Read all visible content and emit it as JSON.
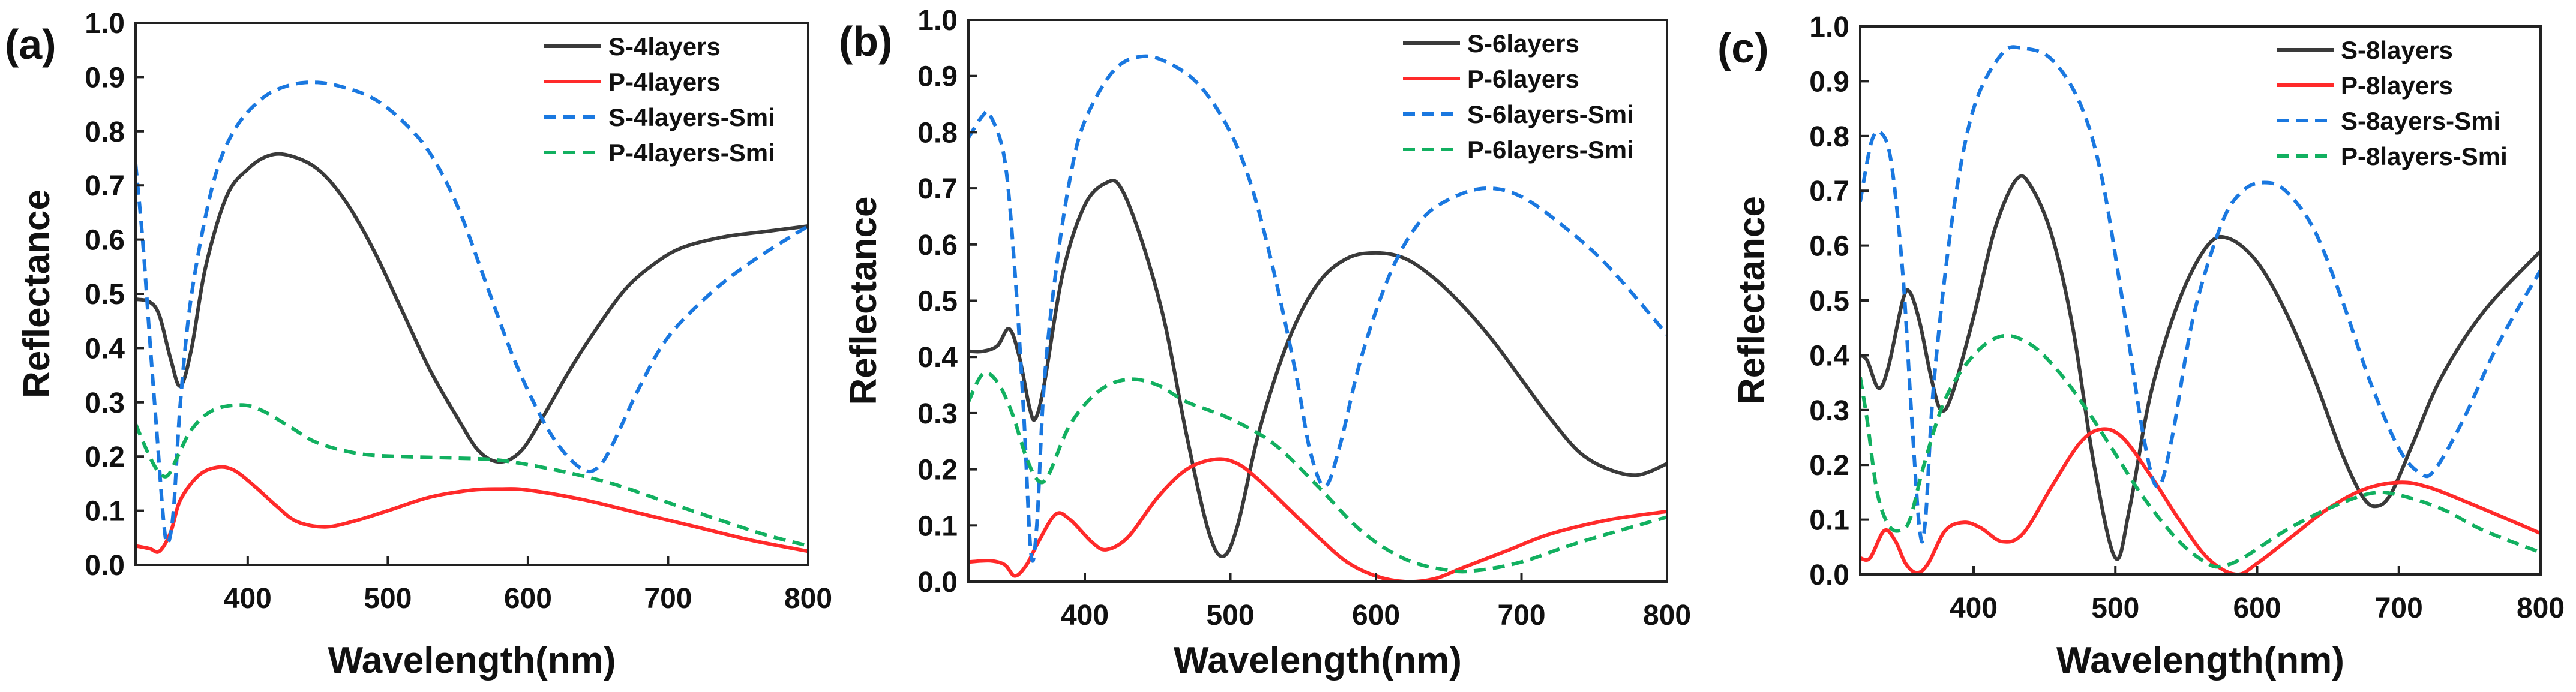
{
  "chart_data": [
    {
      "type": "line",
      "panel_label": "(a)",
      "xlabel": "Wavelength(nm)",
      "ylabel": "Reflectance",
      "xlim": [
        320,
        800
      ],
      "ylim": [
        0,
        1.0
      ],
      "xticks": [
        400,
        500,
        600,
        700,
        800
      ],
      "yticks": [
        "0.0",
        "0.1",
        "0.2",
        "0.3",
        "0.4",
        "0.5",
        "0.6",
        "0.7",
        "0.8",
        "0.9",
        "1.0"
      ],
      "grid": false,
      "legend_position": "top-right",
      "series": [
        {
          "name": "S-4layers",
          "color": "#3a3a3a",
          "style": "solid",
          "x": [
            320,
            330,
            337,
            345,
            352,
            360,
            370,
            385,
            400,
            415,
            430,
            450,
            470,
            490,
            510,
            530,
            550,
            565,
            580,
            595,
            610,
            630,
            650,
            670,
            690,
            710,
            740,
            770,
            800
          ],
          "y": [
            0.49,
            0.485,
            0.46,
            0.38,
            0.33,
            0.4,
            0.55,
            0.68,
            0.73,
            0.755,
            0.755,
            0.73,
            0.67,
            0.58,
            0.47,
            0.36,
            0.27,
            0.21,
            0.19,
            0.21,
            0.27,
            0.36,
            0.44,
            0.51,
            0.555,
            0.585,
            0.605,
            0.615,
            0.625
          ]
        },
        {
          "name": "P-4layers",
          "color": "#ff2a2a",
          "style": "solid",
          "x": [
            320,
            330,
            337,
            345,
            352,
            365,
            378,
            390,
            405,
            420,
            435,
            455,
            475,
            500,
            530,
            560,
            580,
            600,
            640,
            680,
            720,
            760,
            800
          ],
          "y": [
            0.035,
            0.03,
            0.025,
            0.06,
            0.12,
            0.165,
            0.18,
            0.175,
            0.145,
            0.11,
            0.08,
            0.07,
            0.08,
            0.1,
            0.125,
            0.138,
            0.14,
            0.138,
            0.12,
            0.095,
            0.07,
            0.045,
            0.025
          ]
        },
        {
          "name": "S-4layers-Smi",
          "color": "#1a78e0",
          "style": "dashed",
          "x": [
            320,
            325,
            330,
            335,
            340,
            343,
            347,
            352,
            360,
            375,
            390,
            410,
            430,
            450,
            470,
            490,
            510,
            530,
            550,
            570,
            590,
            610,
            625,
            640,
            650,
            660,
            680,
            700,
            730,
            760,
            800
          ],
          "y": [
            0.74,
            0.6,
            0.42,
            0.25,
            0.08,
            0.04,
            0.1,
            0.3,
            0.5,
            0.7,
            0.8,
            0.86,
            0.885,
            0.89,
            0.88,
            0.86,
            0.82,
            0.76,
            0.66,
            0.52,
            0.38,
            0.27,
            0.21,
            0.175,
            0.18,
            0.22,
            0.33,
            0.42,
            0.5,
            0.56,
            0.625
          ]
        },
        {
          "name": "P-4layers-Smi",
          "color": "#12b060",
          "style": "dashed",
          "x": [
            320,
            330,
            337,
            343,
            350,
            360,
            375,
            395,
            410,
            430,
            450,
            480,
            510,
            550,
            580,
            620,
            660,
            700,
            740,
            770,
            800
          ],
          "y": [
            0.26,
            0.2,
            0.17,
            0.165,
            0.2,
            0.25,
            0.285,
            0.295,
            0.285,
            0.255,
            0.225,
            0.205,
            0.2,
            0.197,
            0.193,
            0.175,
            0.15,
            0.115,
            0.08,
            0.055,
            0.035
          ]
        }
      ]
    },
    {
      "type": "line",
      "panel_label": "(b)",
      "xlabel": "Wavelength(nm)",
      "ylabel": "Reflectance",
      "xlim": [
        320,
        800
      ],
      "ylim": [
        0,
        1.0
      ],
      "xticks": [
        400,
        500,
        600,
        700,
        800
      ],
      "yticks": [
        "0.0",
        "0.1",
        "0.2",
        "0.3",
        "0.4",
        "0.5",
        "0.6",
        "0.7",
        "0.8",
        "0.9",
        "1.0"
      ],
      "grid": false,
      "legend_position": "top-right",
      "series": [
        {
          "name": "S-6layers",
          "color": "#3a3a3a",
          "style": "solid",
          "x": [
            320,
            330,
            340,
            348,
            355,
            362,
            366,
            372,
            385,
            400,
            415,
            425,
            440,
            455,
            470,
            485,
            495,
            505,
            520,
            540,
            560,
            580,
            600,
            620,
            640,
            660,
            680,
            700,
            720,
            740,
            760,
            780,
            800
          ],
          "y": [
            0.41,
            0.41,
            0.42,
            0.45,
            0.4,
            0.31,
            0.29,
            0.35,
            0.55,
            0.67,
            0.71,
            0.7,
            0.6,
            0.46,
            0.26,
            0.09,
            0.045,
            0.1,
            0.27,
            0.43,
            0.53,
            0.575,
            0.585,
            0.575,
            0.54,
            0.49,
            0.43,
            0.36,
            0.29,
            0.23,
            0.2,
            0.19,
            0.21
          ]
        },
        {
          "name": "P-6layers",
          "color": "#ff2a2a",
          "style": "solid",
          "x": [
            320,
            335,
            345,
            352,
            360,
            368,
            380,
            390,
            405,
            415,
            430,
            450,
            470,
            490,
            505,
            520,
            540,
            560,
            580,
            600,
            620,
            640,
            660,
            690,
            720,
            760,
            800
          ],
          "y": [
            0.035,
            0.037,
            0.03,
            0.01,
            0.03,
            0.07,
            0.12,
            0.11,
            0.07,
            0.057,
            0.08,
            0.15,
            0.2,
            0.218,
            0.21,
            0.18,
            0.13,
            0.08,
            0.035,
            0.01,
            0.0,
            0.005,
            0.025,
            0.055,
            0.085,
            0.11,
            0.125
          ]
        },
        {
          "name": "S-6layers-Smi",
          "color": "#1a78e0",
          "style": "dashed",
          "x": [
            320,
            330,
            335,
            345,
            352,
            358,
            363,
            367,
            372,
            380,
            390,
            400,
            420,
            440,
            460,
            480,
            500,
            515,
            530,
            545,
            555,
            565,
            575,
            590,
            610,
            630,
            650,
            675,
            700,
            730,
            760,
            800
          ],
          "y": [
            0.79,
            0.83,
            0.83,
            0.75,
            0.55,
            0.3,
            0.05,
            0.1,
            0.35,
            0.55,
            0.72,
            0.82,
            0.91,
            0.935,
            0.92,
            0.88,
            0.8,
            0.7,
            0.55,
            0.37,
            0.23,
            0.17,
            0.24,
            0.4,
            0.55,
            0.64,
            0.68,
            0.7,
            0.685,
            0.63,
            0.56,
            0.44
          ]
        },
        {
          "name": "P-6layers-Smi",
          "color": "#12b060",
          "style": "dashed",
          "x": [
            320,
            330,
            340,
            350,
            360,
            368,
            375,
            390,
            410,
            430,
            450,
            470,
            500,
            530,
            560,
            590,
            620,
            650,
            670,
            700,
            740,
            800
          ],
          "y": [
            0.32,
            0.37,
            0.355,
            0.3,
            0.22,
            0.18,
            0.19,
            0.28,
            0.34,
            0.36,
            0.35,
            0.32,
            0.29,
            0.245,
            0.17,
            0.09,
            0.04,
            0.02,
            0.02,
            0.035,
            0.07,
            0.115
          ]
        }
      ]
    },
    {
      "type": "line",
      "panel_label": "(c)",
      "xlabel": "Wavelength(nm)",
      "ylabel": "Reflectance",
      "xlim": [
        320,
        800
      ],
      "ylim": [
        0,
        1.0
      ],
      "xticks": [
        400,
        500,
        600,
        700,
        800
      ],
      "yticks": [
        "0.0",
        "0.1",
        "0.2",
        "0.3",
        "0.4",
        "0.5",
        "0.6",
        "0.7",
        "0.8",
        "0.9",
        "1.0"
      ],
      "grid": false,
      "legend_position": "top-right",
      "series": [
        {
          "name": "S-8layers",
          "color": "#3a3a3a",
          "style": "solid",
          "x": [
            320,
            325,
            333,
            340,
            350,
            355,
            362,
            370,
            377,
            385,
            400,
            415,
            430,
            440,
            455,
            470,
            485,
            500,
            510,
            525,
            545,
            565,
            580,
            600,
            620,
            640,
            660,
            675,
            685,
            695,
            710,
            730,
            760,
            800
          ],
          "y": [
            0.4,
            0.39,
            0.34,
            0.38,
            0.5,
            0.515,
            0.46,
            0.36,
            0.3,
            0.33,
            0.47,
            0.63,
            0.72,
            0.71,
            0.62,
            0.45,
            0.2,
            0.03,
            0.12,
            0.33,
            0.5,
            0.6,
            0.613,
            0.57,
            0.48,
            0.36,
            0.22,
            0.14,
            0.125,
            0.15,
            0.24,
            0.36,
            0.48,
            0.59
          ]
        },
        {
          "name": "P-8layers",
          "color": "#ff2a2a",
          "style": "solid",
          "x": [
            320,
            327,
            337,
            345,
            352,
            360,
            368,
            380,
            393,
            405,
            420,
            435,
            455,
            475,
            490,
            505,
            525,
            545,
            565,
            585,
            600,
            625,
            650,
            675,
            700,
            720,
            750,
            800
          ],
          "y": [
            0.03,
            0.03,
            0.08,
            0.06,
            0.02,
            0.003,
            0.02,
            0.08,
            0.095,
            0.085,
            0.06,
            0.075,
            0.16,
            0.24,
            0.265,
            0.25,
            0.18,
            0.1,
            0.03,
            0.0,
            0.02,
            0.07,
            0.12,
            0.155,
            0.168,
            0.16,
            0.13,
            0.075
          ]
        },
        {
          "name": "S-8ayers-Smi",
          "color": "#1a78e0",
          "style": "dashed",
          "x": [
            320,
            328,
            335,
            342,
            350,
            356,
            362,
            366,
            372,
            385,
            400,
            420,
            435,
            455,
            475,
            490,
            505,
            520,
            530,
            540,
            555,
            575,
            590,
            605,
            620,
            640,
            660,
            680,
            700,
            715,
            725,
            745,
            770,
            800
          ],
          "y": [
            0.68,
            0.79,
            0.805,
            0.75,
            0.55,
            0.3,
            0.08,
            0.1,
            0.35,
            0.65,
            0.85,
            0.95,
            0.96,
            0.94,
            0.86,
            0.73,
            0.5,
            0.25,
            0.16,
            0.25,
            0.47,
            0.64,
            0.7,
            0.715,
            0.7,
            0.63,
            0.5,
            0.35,
            0.23,
            0.185,
            0.19,
            0.28,
            0.42,
            0.555
          ]
        },
        {
          "name": "P-8layers-Smi",
          "color": "#12b060",
          "style": "dashed",
          "x": [
            320,
            325,
            332,
            340,
            348,
            355,
            365,
            380,
            400,
            420,
            440,
            460,
            480,
            500,
            520,
            545,
            565,
            575,
            590,
            620,
            650,
            680,
            700,
            730,
            760,
            800
          ],
          "y": [
            0.36,
            0.28,
            0.15,
            0.09,
            0.08,
            0.1,
            0.2,
            0.32,
            0.4,
            0.435,
            0.42,
            0.37,
            0.3,
            0.22,
            0.14,
            0.06,
            0.02,
            0.015,
            0.03,
            0.08,
            0.12,
            0.148,
            0.145,
            0.12,
            0.08,
            0.04
          ]
        }
      ]
    }
  ]
}
